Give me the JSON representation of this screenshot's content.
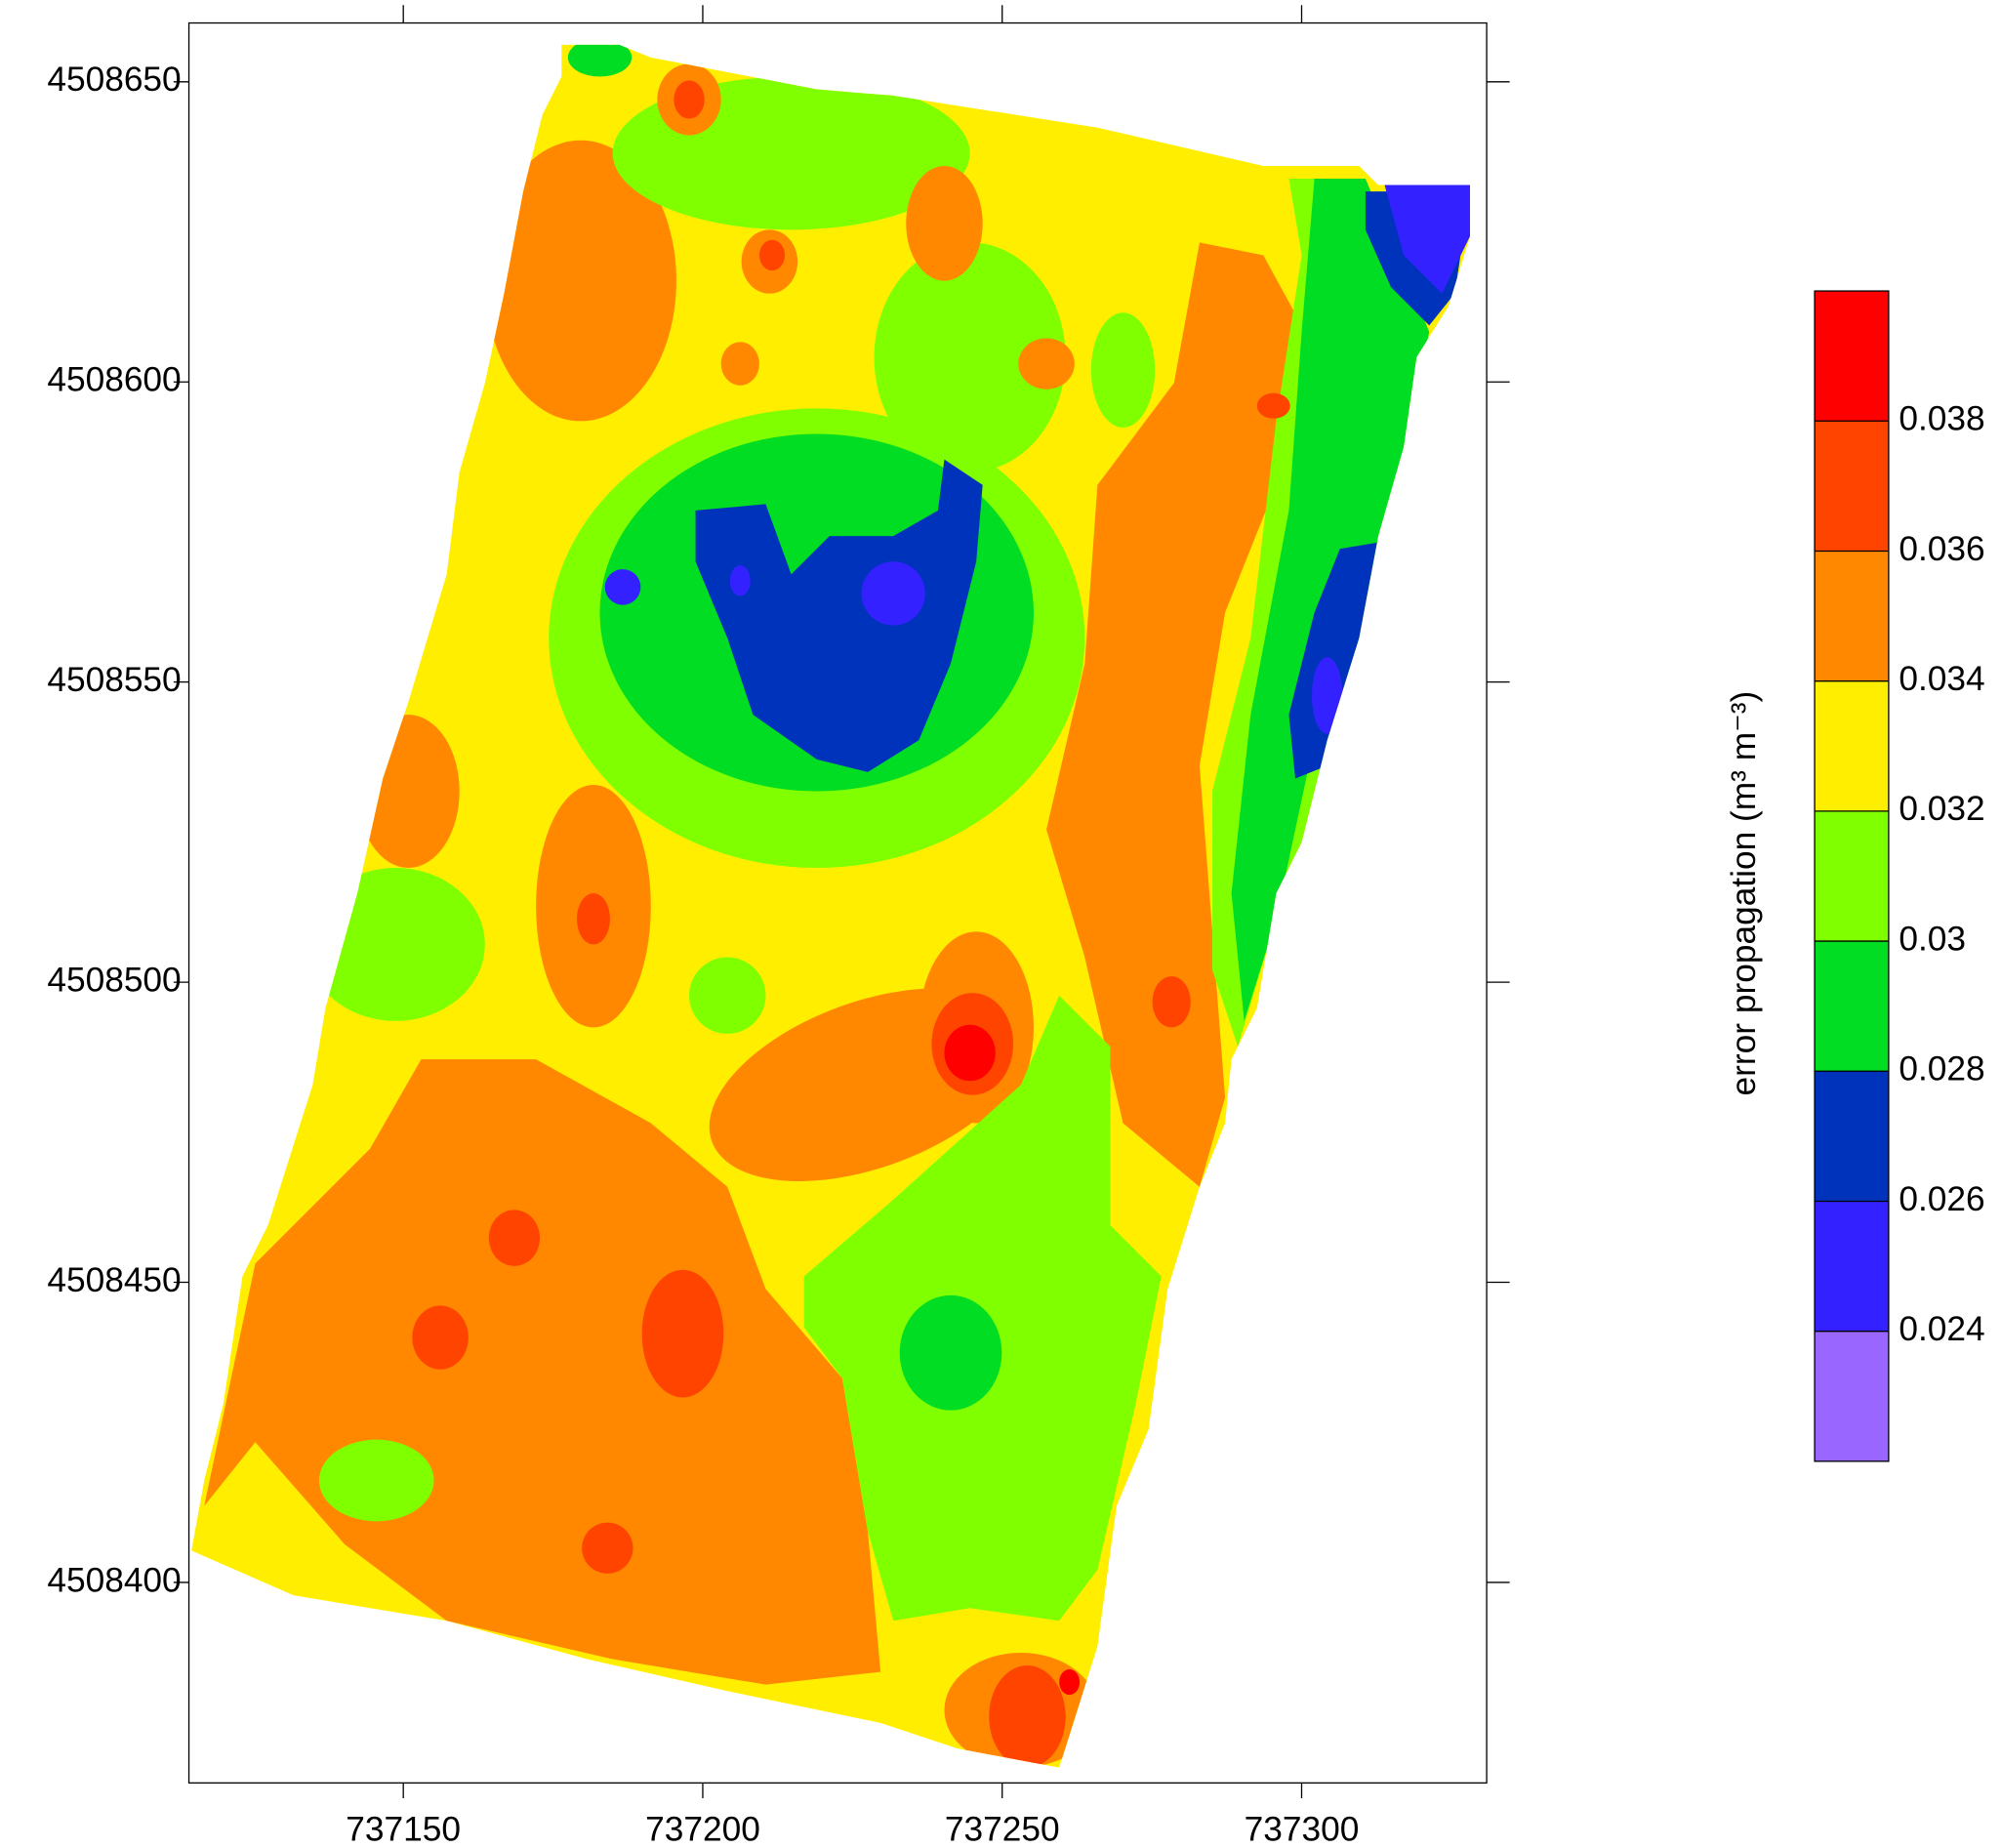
{
  "chart_data": {
    "type": "contour",
    "xlim": [
      737114.2,
      737330.9
    ],
    "ylim": [
      4508366.6,
      4508659.8
    ],
    "xticks": [
      737150,
      737200,
      737250,
      737300
    ],
    "yticks": [
      4508400,
      4508450,
      4508500,
      4508550,
      4508600,
      4508650
    ],
    "colorbar": {
      "label": "error propagation (m³ m⁻³)",
      "lim": [
        0.022,
        0.04
      ],
      "ticks": [
        0.024,
        0.026,
        0.028,
        0.03,
        0.032,
        0.034,
        0.036,
        0.038
      ],
      "colors": [
        "#9966ff",
        "#3322ff",
        "#0033bb",
        "#00dd22",
        "#80ff00",
        "#ffee00",
        "#ff8800",
        "#ff4400",
        "#ff0000"
      ]
    }
  }
}
